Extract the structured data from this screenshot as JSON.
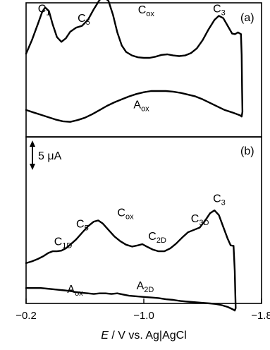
{
  "chart_data": {
    "type": "line",
    "xlabel_var": "E",
    "xlabel_rest": " / V vs. Ag|AgCl",
    "x_ticks": [
      {
        "value": -0.2,
        "label": "−0.2"
      },
      {
        "value": -1.0,
        "label": "−1.0"
      },
      {
        "value": -1.8,
        "label": "−1.8"
      }
    ],
    "xlim": [
      -0.2,
      -1.8
    ],
    "scale_bar_label": "5 μA",
    "scale_bar_uA": 5,
    "panels": [
      {
        "id": "a",
        "label": "(a)",
        "annotations": [
          {
            "main": "C",
            "sub": "1",
            "x": -0.28,
            "y": 15.2
          },
          {
            "main": "C",
            "sub": "5",
            "x": -0.55,
            "y": 13.6
          },
          {
            "main": "C",
            "sub": "ox",
            "x": -0.96,
            "y": 15.0
          },
          {
            "main": "C",
            "sub": "3",
            "x": -1.47,
            "y": 15.2
          },
          {
            "main": "A",
            "sub": "ox",
            "x": -0.93,
            "y": -1.0
          }
        ],
        "cathodic_scan": [
          [
            -0.2,
            8.2
          ],
          [
            -0.24,
            10.5
          ],
          [
            -0.28,
            13.2
          ],
          [
            -0.31,
            15.3
          ],
          [
            -0.33,
            16.0
          ],
          [
            -0.355,
            15.4
          ],
          [
            -0.38,
            13.2
          ],
          [
            -0.41,
            11.0
          ],
          [
            -0.44,
            10.2
          ],
          [
            -0.47,
            10.8
          ],
          [
            -0.5,
            11.9
          ],
          [
            -0.54,
            12.6
          ],
          [
            -0.58,
            12.9
          ],
          [
            -0.62,
            13.9
          ],
          [
            -0.66,
            15.7
          ],
          [
            -0.7,
            17.3
          ],
          [
            -0.73,
            17.8
          ],
          [
            -0.76,
            17.1
          ],
          [
            -0.79,
            14.8
          ],
          [
            -0.82,
            11.8
          ],
          [
            -0.85,
            9.6
          ],
          [
            -0.88,
            8.5
          ],
          [
            -0.92,
            7.9
          ],
          [
            -0.96,
            7.6
          ],
          [
            -1.0,
            7.5
          ],
          [
            -1.04,
            7.5
          ],
          [
            -1.08,
            7.7
          ],
          [
            -1.12,
            8.0
          ],
          [
            -1.16,
            8.1
          ],
          [
            -1.2,
            7.9
          ],
          [
            -1.24,
            7.8
          ],
          [
            -1.28,
            7.9
          ],
          [
            -1.32,
            8.3
          ],
          [
            -1.36,
            9.1
          ],
          [
            -1.4,
            10.5
          ],
          [
            -1.44,
            12.3
          ],
          [
            -1.48,
            13.9
          ],
          [
            -1.51,
            14.6
          ],
          [
            -1.54,
            14.2
          ],
          [
            -1.57,
            12.9
          ],
          [
            -1.6,
            11.6
          ],
          [
            -1.62,
            11.5
          ],
          [
            -1.64,
            11.8
          ],
          [
            -1.66,
            11.5
          ]
        ],
        "reverse_vertex": [
          [
            -1.66,
            11.5
          ],
          [
            -1.665,
            8.0
          ],
          [
            -1.668,
            2.0
          ],
          [
            -1.67,
            -1.6
          ],
          [
            -1.665,
            -2.4
          ],
          [
            -1.655,
            -2.2
          ]
        ],
        "anodic_scan": [
          [
            -1.655,
            -2.2
          ],
          [
            -1.6,
            -1.7
          ],
          [
            -1.55,
            -1.3
          ],
          [
            -1.5,
            -0.7
          ],
          [
            -1.45,
            -0.1
          ],
          [
            -1.4,
            0.5
          ],
          [
            -1.35,
            1.0
          ],
          [
            -1.3,
            1.3
          ],
          [
            -1.25,
            1.6
          ],
          [
            -1.2,
            1.8
          ],
          [
            -1.15,
            1.9
          ],
          [
            -1.1,
            1.9
          ],
          [
            -1.05,
            1.9
          ],
          [
            -1.0,
            1.7
          ],
          [
            -0.95,
            1.4
          ],
          [
            -0.9,
            1.0
          ],
          [
            -0.85,
            0.5
          ],
          [
            -0.8,
            0.0
          ],
          [
            -0.75,
            -0.6
          ],
          [
            -0.7,
            -1.3
          ],
          [
            -0.65,
            -2.0
          ],
          [
            -0.6,
            -2.6
          ],
          [
            -0.55,
            -3.0
          ],
          [
            -0.5,
            -3.3
          ],
          [
            -0.45,
            -3.2
          ],
          [
            -0.4,
            -2.9
          ],
          [
            -0.35,
            -2.5
          ],
          [
            -0.3,
            -2.1
          ],
          [
            -0.25,
            -1.7
          ],
          [
            -0.2,
            -1.3
          ]
        ]
      },
      {
        "id": "b",
        "label": "(b)",
        "annotations": [
          {
            "main": "C",
            "sub": "3",
            "x": -1.47,
            "y": 9.6
          },
          {
            "main": "C",
            "sub": "3D",
            "x": -1.32,
            "y": 6.2
          },
          {
            "main": "C",
            "sub": "ox",
            "x": -0.82,
            "y": 7.2
          },
          {
            "main": "C",
            "sub": "5",
            "x": -0.54,
            "y": 5.3
          },
          {
            "main": "C",
            "sub": "2D",
            "x": -1.03,
            "y": 3.2
          },
          {
            "main": "C",
            "sub": "1D",
            "x": -0.39,
            "y": 2.3
          },
          {
            "main": "A",
            "sub": "ox",
            "x": -0.48,
            "y": -5.7
          },
          {
            "main": "A",
            "sub": "2D",
            "x": -0.95,
            "y": -5.1
          }
        ],
        "cathodic_scan": [
          [
            -0.2,
            -0.7
          ],
          [
            -0.24,
            -0.4
          ],
          [
            -0.28,
            0.0
          ],
          [
            -0.32,
            0.5
          ],
          [
            -0.35,
            1.0
          ],
          [
            -0.38,
            1.3
          ],
          [
            -0.41,
            1.3
          ],
          [
            -0.44,
            1.4
          ],
          [
            -0.47,
            1.8
          ],
          [
            -0.5,
            2.4
          ],
          [
            -0.54,
            3.3
          ],
          [
            -0.58,
            4.4
          ],
          [
            -0.62,
            5.5
          ],
          [
            -0.66,
            6.3
          ],
          [
            -0.69,
            6.5
          ],
          [
            -0.72,
            6.0
          ],
          [
            -0.76,
            4.9
          ],
          [
            -0.8,
            3.8
          ],
          [
            -0.84,
            3.0
          ],
          [
            -0.88,
            2.4
          ],
          [
            -0.92,
            2.1
          ],
          [
            -0.96,
            2.3
          ],
          [
            -0.99,
            2.5
          ],
          [
            -1.02,
            2.1
          ],
          [
            -1.06,
            1.6
          ],
          [
            -1.1,
            1.3
          ],
          [
            -1.14,
            1.3
          ],
          [
            -1.18,
            1.8
          ],
          [
            -1.22,
            2.6
          ],
          [
            -1.26,
            3.6
          ],
          [
            -1.3,
            4.5
          ],
          [
            -1.34,
            4.9
          ],
          [
            -1.38,
            5.3
          ],
          [
            -1.42,
            6.6
          ],
          [
            -1.45,
            7.7
          ],
          [
            -1.48,
            8.2
          ],
          [
            -1.51,
            7.4
          ],
          [
            -1.54,
            5.4
          ],
          [
            -1.57,
            3.4
          ],
          [
            -1.59,
            2.3
          ],
          [
            -1.61,
            2.2
          ]
        ],
        "reverse_vertex": [
          [
            -1.61,
            2.2
          ],
          [
            -1.618,
            -2.0
          ],
          [
            -1.622,
            -6.0
          ],
          [
            -1.624,
            -8.3
          ],
          [
            -1.618,
            -8.7
          ],
          [
            -1.605,
            -8.5
          ]
        ],
        "anodic_scan": [
          [
            -1.605,
            -8.5
          ],
          [
            -1.57,
            -8.1
          ],
          [
            -1.53,
            -7.8
          ],
          [
            -1.49,
            -7.6
          ],
          [
            -1.45,
            -7.5
          ],
          [
            -1.4,
            -7.4
          ],
          [
            -1.35,
            -7.3
          ],
          [
            -1.3,
            -7.2
          ],
          [
            -1.25,
            -7.1
          ],
          [
            -1.2,
            -6.9
          ],
          [
            -1.15,
            -6.8
          ],
          [
            -1.1,
            -6.6
          ],
          [
            -1.05,
            -6.5
          ],
          [
            -1.0,
            -6.4
          ],
          [
            -0.95,
            -6.3
          ],
          [
            -0.9,
            -6.2
          ],
          [
            -0.86,
            -6.0
          ],
          [
            -0.82,
            -5.8
          ],
          [
            -0.78,
            -5.9
          ],
          [
            -0.74,
            -5.8
          ],
          [
            -0.7,
            -5.8
          ],
          [
            -0.66,
            -5.9
          ],
          [
            -0.62,
            -5.8
          ],
          [
            -0.58,
            -5.7
          ],
          [
            -0.54,
            -5.6
          ],
          [
            -0.5,
            -5.4
          ],
          [
            -0.46,
            -5.3
          ],
          [
            -0.42,
            -5.2
          ],
          [
            -0.38,
            -5.1
          ],
          [
            -0.34,
            -5.0
          ],
          [
            -0.3,
            -4.9
          ],
          [
            -0.26,
            -4.9
          ],
          [
            -0.22,
            -4.9
          ],
          [
            -0.2,
            -4.9
          ]
        ]
      }
    ]
  }
}
